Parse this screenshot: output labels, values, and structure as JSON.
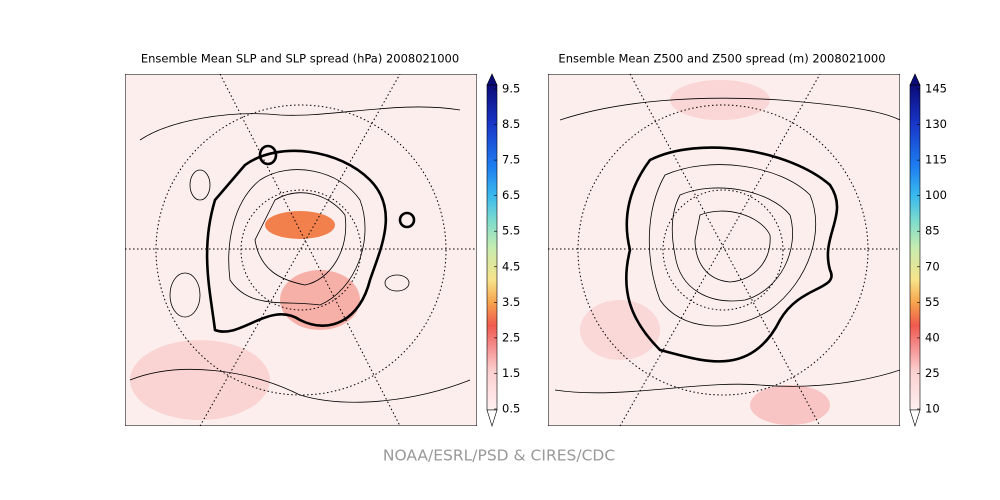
{
  "panels": [
    {
      "title": "Ensemble Mean SLP and SLP spread (hPa) 2008021000",
      "colorbar": {
        "ticks": [
          0.5,
          1.5,
          2.5,
          3.5,
          4.5,
          5.5,
          6.5,
          7.5,
          8.5,
          9.5
        ]
      }
    },
    {
      "title": "Ensemble Mean Z500 and Z500 spread (m) 2008021000",
      "colorbar": {
        "ticks": [
          10,
          25,
          40,
          55,
          70,
          85,
          100,
          115,
          130,
          145
        ]
      }
    }
  ],
  "credit": "NOAA/ESRL/PSD & CIRES/CDC"
}
